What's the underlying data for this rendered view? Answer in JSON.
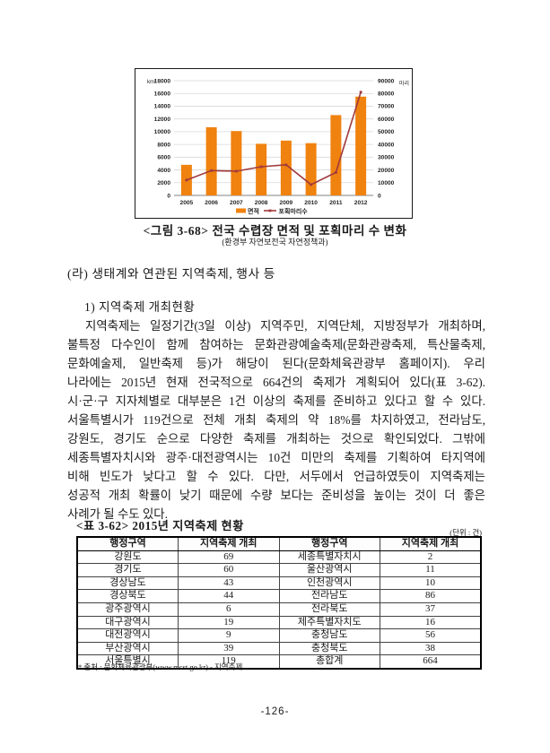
{
  "figure": {
    "caption": "<그림 3-68> 전국 수렵장 면적 및 포획마리 수 변화",
    "caption_sub": "(환경부 자연보전국 자연정책과)"
  },
  "chart_data": {
    "type": "bar+line combo",
    "categories": [
      "2005",
      "2006",
      "2007",
      "2008",
      "2009",
      "2010",
      "2011",
      "2012"
    ],
    "series": [
      {
        "name": "면적",
        "type": "bar",
        "axis": "left",
        "color": "#F0820F",
        "values": [
          4800,
          10700,
          10100,
          8100,
          8600,
          8200,
          12600,
          15500
        ]
      },
      {
        "name": "포획마리수",
        "type": "line",
        "axis": "right",
        "color": "#A13A3C",
        "values": [
          12000,
          19500,
          19000,
          22500,
          24000,
          8500,
          18000,
          81000
        ]
      }
    ],
    "left_axis": {
      "label": "km²",
      "min": 0,
      "max": 18000,
      "step": 2000
    },
    "right_axis": {
      "label": "마리",
      "min": 0,
      "max": 90000,
      "step": 10000
    },
    "legend_position": "bottom",
    "grid": true,
    "grid_color": "#D8D8D8"
  },
  "sections": {
    "heading": "(라) 생태계와 연관된 지역축제, 행사 등",
    "subheading": "1) 지역축제 개최현황",
    "paragraph_lines": [
      "지역축제는 일정기간(3일 이상) 지역주민, 지역단체, 지방정부가 개최하며,",
      "불특정 다수인이 함께 참여하는 문화관광예술축제(문화관광축제, 특산물축제,",
      "문화예술제, 일반축제 등)가 해당이 된다(문화체육관광부 홈페이지). 우리",
      "나라에는 2015년 현재 전국적으로 664건의 축제가 계획되어 있다(표 3-62).",
      "시·군·구 지자체별로 대부분은 1건 이상의 축제를 준비하고 있다고 할 수 있다.",
      "서울특별시가 119건으로 전체 개최 축제의 약 18%를 차지하였고, 전라남도,",
      "강원도, 경기도 순으로 다양한 축제를 개최하는 것으로 확인되었다. 그밖에",
      "세종특별자치시와 광주·대전광역시는 10건 미만의 축제를 기획하여 타지역에",
      "비해 빈도가 낮다고 할 수 있다. 다만, 서두에서 언급하였듯이 지역축제는",
      "성공적 개최 확률이 낮기 때문에 수량 보다는 준비성을 높이는 것이 더 좋은",
      "사례가 될 수도 있다."
    ]
  },
  "table": {
    "title": "<표 3-62> 2015년 지역축제 현황",
    "unit_note": "(단위 : 건)",
    "headers": [
      "행정구역",
      "지역축제 개최",
      "행정구역",
      "지역축제 개최"
    ],
    "rows": [
      [
        "강원도",
        "69",
        "세종특별자치시",
        "2"
      ],
      [
        "경기도",
        "60",
        "울산광역시",
        "11"
      ],
      [
        "경상남도",
        "43",
        "인천광역시",
        "10"
      ],
      [
        "경상북도",
        "44",
        "전라남도",
        "86"
      ],
      [
        "광주광역시",
        "6",
        "전라북도",
        "37"
      ],
      [
        "대구광역시",
        "19",
        "제주특별자치도",
        "16"
      ],
      [
        "대전광역시",
        "9",
        "충청남도",
        "56"
      ],
      [
        "부산광역시",
        "39",
        "충청북도",
        "38"
      ],
      [
        "서울특별시",
        "119",
        "총합계",
        "664"
      ]
    ],
    "footnote": "* 출처 : 문화체육관광부(www.mcst.go.kr) - 지역축제"
  },
  "page": {
    "number": "-126-"
  }
}
